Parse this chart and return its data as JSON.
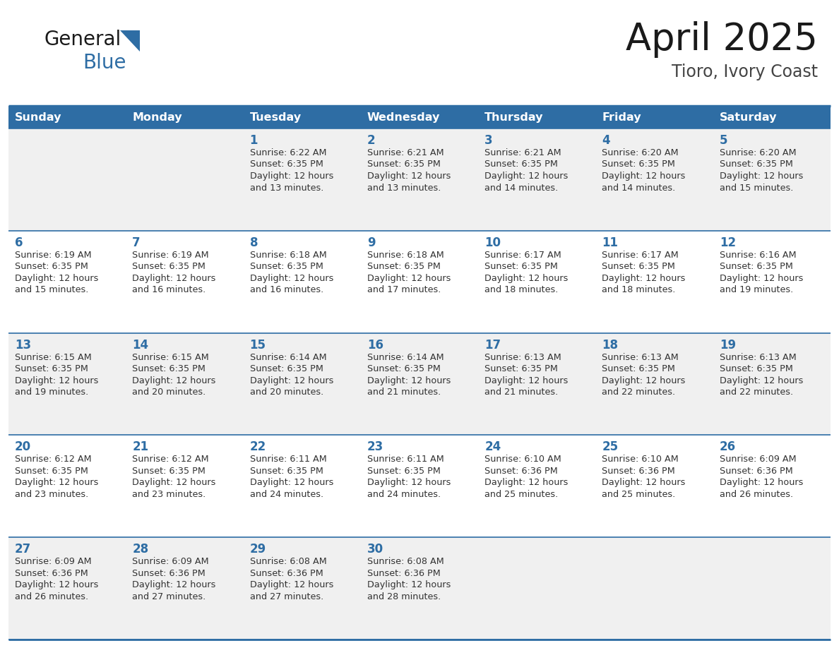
{
  "title": "April 2025",
  "subtitle": "Tioro, Ivory Coast",
  "header_bg_color": "#2E6DA4",
  "header_text_color": "#FFFFFF",
  "cell_bg_color_odd": "#F0F0F0",
  "cell_bg_color_even": "#FFFFFF",
  "border_color": "#2E6DA4",
  "day_names": [
    "Sunday",
    "Monday",
    "Tuesday",
    "Wednesday",
    "Thursday",
    "Friday",
    "Saturday"
  ],
  "title_color": "#1a1a1a",
  "subtitle_color": "#444444",
  "day_num_color": "#2E6DA4",
  "cell_text_color": "#333333",
  "logo_black_color": "#1a1a1a",
  "logo_blue_color": "#2E6DA4",
  "calendar": [
    [
      {
        "day": "",
        "lines": []
      },
      {
        "day": "",
        "lines": []
      },
      {
        "day": "1",
        "lines": [
          "Sunrise: 6:22 AM",
          "Sunset: 6:35 PM",
          "Daylight: 12 hours",
          "and 13 minutes."
        ]
      },
      {
        "day": "2",
        "lines": [
          "Sunrise: 6:21 AM",
          "Sunset: 6:35 PM",
          "Daylight: 12 hours",
          "and 13 minutes."
        ]
      },
      {
        "day": "3",
        "lines": [
          "Sunrise: 6:21 AM",
          "Sunset: 6:35 PM",
          "Daylight: 12 hours",
          "and 14 minutes."
        ]
      },
      {
        "day": "4",
        "lines": [
          "Sunrise: 6:20 AM",
          "Sunset: 6:35 PM",
          "Daylight: 12 hours",
          "and 14 minutes."
        ]
      },
      {
        "day": "5",
        "lines": [
          "Sunrise: 6:20 AM",
          "Sunset: 6:35 PM",
          "Daylight: 12 hours",
          "and 15 minutes."
        ]
      }
    ],
    [
      {
        "day": "6",
        "lines": [
          "Sunrise: 6:19 AM",
          "Sunset: 6:35 PM",
          "Daylight: 12 hours",
          "and 15 minutes."
        ]
      },
      {
        "day": "7",
        "lines": [
          "Sunrise: 6:19 AM",
          "Sunset: 6:35 PM",
          "Daylight: 12 hours",
          "and 16 minutes."
        ]
      },
      {
        "day": "8",
        "lines": [
          "Sunrise: 6:18 AM",
          "Sunset: 6:35 PM",
          "Daylight: 12 hours",
          "and 16 minutes."
        ]
      },
      {
        "day": "9",
        "lines": [
          "Sunrise: 6:18 AM",
          "Sunset: 6:35 PM",
          "Daylight: 12 hours",
          "and 17 minutes."
        ]
      },
      {
        "day": "10",
        "lines": [
          "Sunrise: 6:17 AM",
          "Sunset: 6:35 PM",
          "Daylight: 12 hours",
          "and 18 minutes."
        ]
      },
      {
        "day": "11",
        "lines": [
          "Sunrise: 6:17 AM",
          "Sunset: 6:35 PM",
          "Daylight: 12 hours",
          "and 18 minutes."
        ]
      },
      {
        "day": "12",
        "lines": [
          "Sunrise: 6:16 AM",
          "Sunset: 6:35 PM",
          "Daylight: 12 hours",
          "and 19 minutes."
        ]
      }
    ],
    [
      {
        "day": "13",
        "lines": [
          "Sunrise: 6:15 AM",
          "Sunset: 6:35 PM",
          "Daylight: 12 hours",
          "and 19 minutes."
        ]
      },
      {
        "day": "14",
        "lines": [
          "Sunrise: 6:15 AM",
          "Sunset: 6:35 PM",
          "Daylight: 12 hours",
          "and 20 minutes."
        ]
      },
      {
        "day": "15",
        "lines": [
          "Sunrise: 6:14 AM",
          "Sunset: 6:35 PM",
          "Daylight: 12 hours",
          "and 20 minutes."
        ]
      },
      {
        "day": "16",
        "lines": [
          "Sunrise: 6:14 AM",
          "Sunset: 6:35 PM",
          "Daylight: 12 hours",
          "and 21 minutes."
        ]
      },
      {
        "day": "17",
        "lines": [
          "Sunrise: 6:13 AM",
          "Sunset: 6:35 PM",
          "Daylight: 12 hours",
          "and 21 minutes."
        ]
      },
      {
        "day": "18",
        "lines": [
          "Sunrise: 6:13 AM",
          "Sunset: 6:35 PM",
          "Daylight: 12 hours",
          "and 22 minutes."
        ]
      },
      {
        "day": "19",
        "lines": [
          "Sunrise: 6:13 AM",
          "Sunset: 6:35 PM",
          "Daylight: 12 hours",
          "and 22 minutes."
        ]
      }
    ],
    [
      {
        "day": "20",
        "lines": [
          "Sunrise: 6:12 AM",
          "Sunset: 6:35 PM",
          "Daylight: 12 hours",
          "and 23 minutes."
        ]
      },
      {
        "day": "21",
        "lines": [
          "Sunrise: 6:12 AM",
          "Sunset: 6:35 PM",
          "Daylight: 12 hours",
          "and 23 minutes."
        ]
      },
      {
        "day": "22",
        "lines": [
          "Sunrise: 6:11 AM",
          "Sunset: 6:35 PM",
          "Daylight: 12 hours",
          "and 24 minutes."
        ]
      },
      {
        "day": "23",
        "lines": [
          "Sunrise: 6:11 AM",
          "Sunset: 6:35 PM",
          "Daylight: 12 hours",
          "and 24 minutes."
        ]
      },
      {
        "day": "24",
        "lines": [
          "Sunrise: 6:10 AM",
          "Sunset: 6:36 PM",
          "Daylight: 12 hours",
          "and 25 minutes."
        ]
      },
      {
        "day": "25",
        "lines": [
          "Sunrise: 6:10 AM",
          "Sunset: 6:36 PM",
          "Daylight: 12 hours",
          "and 25 minutes."
        ]
      },
      {
        "day": "26",
        "lines": [
          "Sunrise: 6:09 AM",
          "Sunset: 6:36 PM",
          "Daylight: 12 hours",
          "and 26 minutes."
        ]
      }
    ],
    [
      {
        "day": "27",
        "lines": [
          "Sunrise: 6:09 AM",
          "Sunset: 6:36 PM",
          "Daylight: 12 hours",
          "and 26 minutes."
        ]
      },
      {
        "day": "28",
        "lines": [
          "Sunrise: 6:09 AM",
          "Sunset: 6:36 PM",
          "Daylight: 12 hours",
          "and 27 minutes."
        ]
      },
      {
        "day": "29",
        "lines": [
          "Sunrise: 6:08 AM",
          "Sunset: 6:36 PM",
          "Daylight: 12 hours",
          "and 27 minutes."
        ]
      },
      {
        "day": "30",
        "lines": [
          "Sunrise: 6:08 AM",
          "Sunset: 6:36 PM",
          "Daylight: 12 hours",
          "and 28 minutes."
        ]
      },
      {
        "day": "",
        "lines": []
      },
      {
        "day": "",
        "lines": []
      },
      {
        "day": "",
        "lines": []
      }
    ]
  ]
}
